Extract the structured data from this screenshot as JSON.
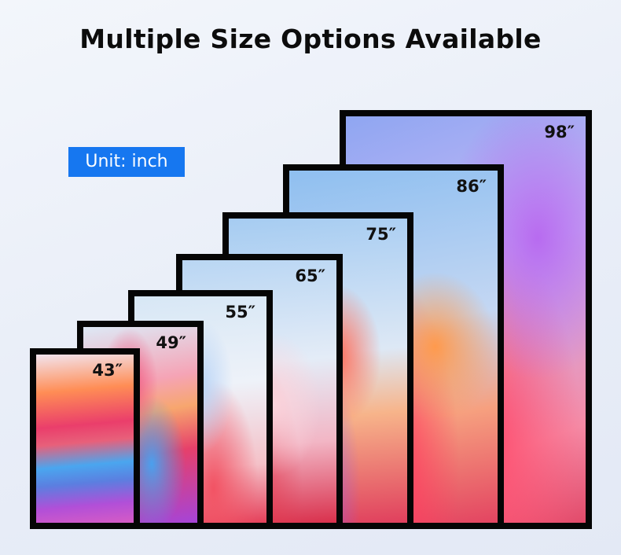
{
  "title": "Multiple Size Options Available",
  "unit_badge": "Unit: inch",
  "accent_color": "#1677f0",
  "sizes": [
    "98″",
    "86″",
    "75″",
    "65″",
    "55″",
    "49″",
    "43″"
  ]
}
